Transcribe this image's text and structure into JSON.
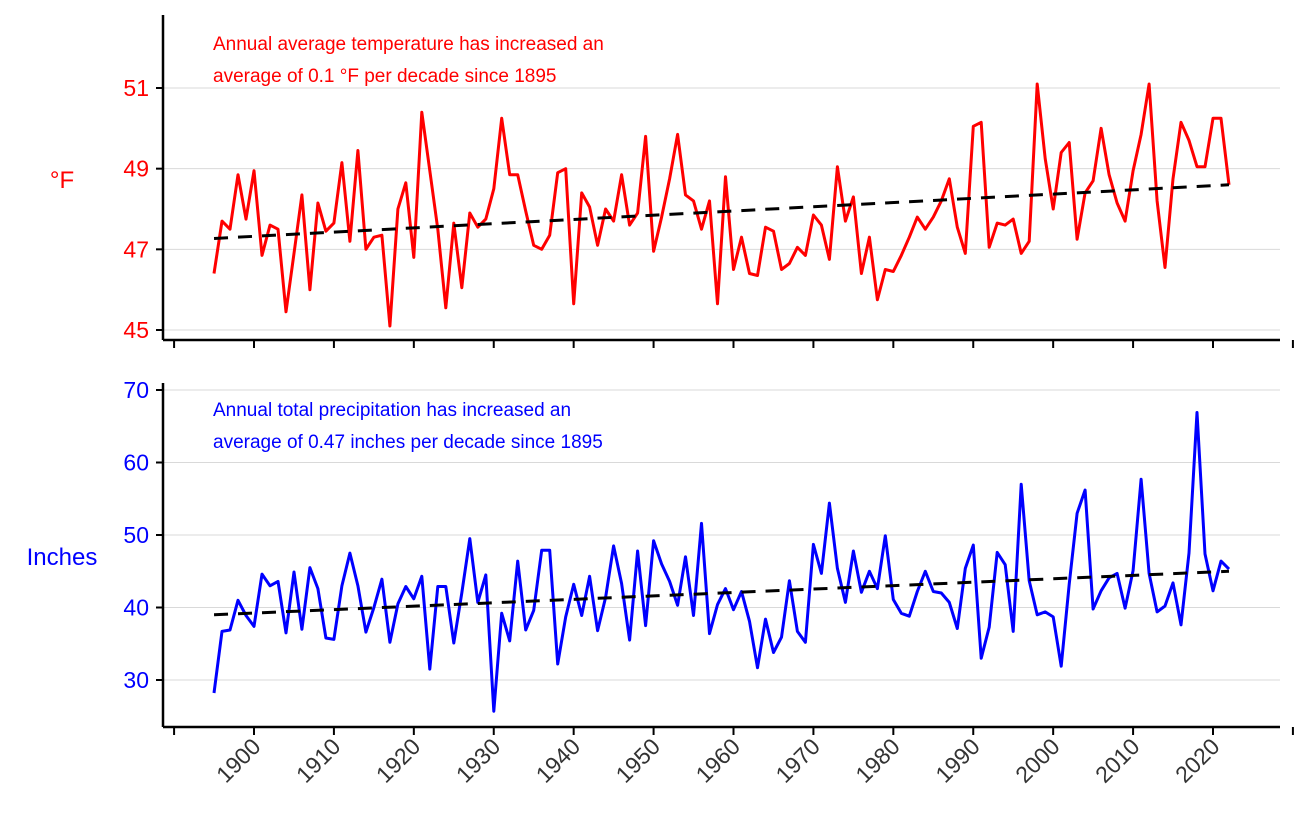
{
  "chart_data": [
    {
      "type": "line",
      "ylabel": "°F",
      "annotation": [
        "Annual average temperature has increased an",
        "average of 0.1 °F per decade since 1895"
      ],
      "color": "#ff0000",
      "ylim": [
        44.8,
        52.8
      ],
      "yticks": [
        45,
        47,
        49,
        51
      ],
      "xlim": [
        1888,
        2030
      ],
      "grid": true,
      "x_start": 1895,
      "values": [
        46.4,
        47.7,
        47.5,
        48.85,
        47.75,
        48.95,
        46.85,
        47.6,
        47.5,
        45.45,
        46.9,
        48.35,
        46.0,
        48.15,
        47.45,
        47.65,
        49.15,
        47.2,
        49.45,
        47.0,
        47.3,
        47.35,
        45.1,
        48.0,
        48.65,
        46.8,
        50.4,
        48.95,
        47.5,
        45.55,
        47.65,
        46.05,
        47.9,
        47.55,
        47.75,
        48.5,
        50.25,
        48.85,
        48.85,
        47.95,
        47.1,
        47.0,
        47.35,
        48.9,
        49.0,
        45.65,
        48.4,
        48.05,
        47.1,
        48.0,
        47.7,
        48.85,
        47.6,
        47.9,
        49.8,
        46.95,
        47.8,
        48.75,
        49.85,
        48.35,
        48.2,
        47.5,
        48.2,
        45.65,
        48.8,
        46.5,
        47.3,
        46.4,
        46.35,
        47.55,
        47.45,
        46.5,
        46.65,
        47.05,
        46.85,
        47.85,
        47.6,
        46.75,
        49.05,
        47.7,
        48.3,
        46.4,
        47.3,
        45.75,
        46.5,
        46.45,
        46.85,
        47.3,
        47.8,
        47.5,
        47.8,
        48.2,
        48.75,
        47.55,
        46.9,
        50.05,
        50.15,
        47.05,
        47.65,
        47.6,
        47.75,
        46.9,
        47.2,
        51.1,
        49.25,
        48.0,
        49.4,
        49.65,
        47.25,
        48.4,
        48.7,
        50.0,
        48.85,
        48.15,
        47.7,
        48.95,
        49.85,
        51.1,
        48.2,
        46.55,
        48.75,
        50.15,
        49.7,
        49.05,
        49.05,
        50.25,
        50.25,
        48.6
      ],
      "trend": {
        "x": [
          1895,
          2022
        ],
        "y": [
          47.27,
          48.6
        ],
        "style": "dashed",
        "color": "#000000"
      }
    },
    {
      "type": "line",
      "ylabel": "Inches",
      "annotation": [
        "Annual total precipitation has increased an",
        "average of 0.47 inches per decade since 1895"
      ],
      "color": "#0000ff",
      "ylim": [
        23.5,
        71
      ],
      "yticks": [
        30,
        40,
        50,
        60,
        70
      ],
      "xlim": [
        1888,
        2030
      ],
      "grid": true,
      "x_start": 1895,
      "values": [
        28.2,
        36.7,
        36.9,
        41.0,
        38.9,
        37.4,
        44.6,
        43.0,
        43.6,
        36.5,
        44.9,
        37.0,
        45.5,
        42.6,
        35.8,
        35.6,
        43.0,
        47.5,
        43.0,
        36.6,
        40.0,
        43.9,
        35.2,
        40.5,
        42.9,
        41.2,
        44.3,
        31.5,
        42.9,
        42.9,
        35.1,
        42.0,
        49.5,
        40.7,
        44.5,
        25.7,
        39.2,
        35.4,
        46.4,
        36.9,
        39.6,
        47.9,
        47.9,
        32.2,
        38.7,
        43.2,
        38.9,
        44.3,
        36.8,
        41.4,
        48.5,
        43.3,
        35.5,
        47.8,
        37.5,
        49.2,
        46.0,
        43.6,
        40.3,
        47.0,
        38.9,
        51.6,
        36.4,
        40.4,
        42.6,
        39.7,
        42.2,
        38.1,
        31.7,
        38.4,
        33.8,
        35.9,
        43.7,
        36.7,
        35.2,
        48.7,
        44.7,
        54.4,
        45.4,
        40.7,
        47.8,
        42.1,
        45.0,
        42.6,
        49.9,
        41.1,
        39.2,
        38.8,
        42.2,
        45.0,
        42.2,
        42.0,
        40.7,
        37.1,
        45.4,
        48.6,
        33.0,
        37.3,
        47.6,
        45.9,
        36.7,
        57.0,
        43.7,
        39.0,
        39.4,
        38.7,
        31.9,
        43.2,
        53.0,
        56.2,
        39.8,
        42.3,
        44.1,
        44.7,
        39.9,
        45.1,
        57.7,
        44.7,
        39.4,
        40.2,
        43.4,
        37.6,
        47.5,
        66.9,
        47.4,
        42.3,
        46.4,
        45.3
      ],
      "trend": {
        "x": [
          1895,
          2022
        ],
        "y": [
          39.0,
          45.0
        ],
        "style": "dashed",
        "color": "#000000"
      }
    }
  ],
  "x_axis": {
    "ticks": [
      1890,
      1900,
      1910,
      1920,
      1930,
      1940,
      1950,
      1960,
      1970,
      1980,
      1990,
      2000,
      2010,
      2020,
      2030
    ],
    "tick_labels": [
      "1900",
      "1910",
      "1920",
      "1930",
      "1940",
      "1950",
      "1960",
      "1970",
      "1980",
      "1990",
      "2000",
      "2010",
      "2020"
    ]
  }
}
